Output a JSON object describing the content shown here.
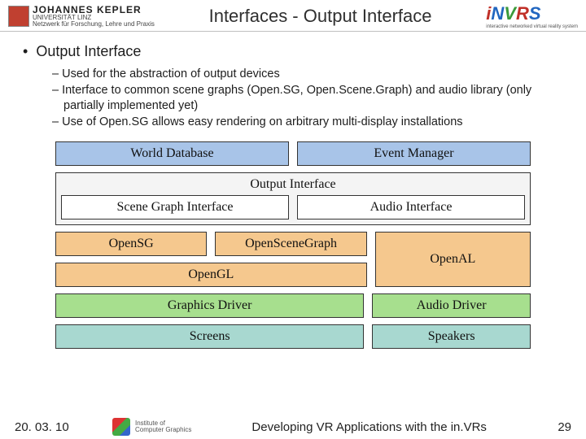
{
  "header": {
    "left_logo": {
      "uni_line1": "JOHANNES KEPLER",
      "uni_line2": "UNIVERSITÄT LINZ",
      "uni_line3": "Netzwerk für Forschung, Lehre und Praxis"
    },
    "slide_title": "Interfaces - Output Interface",
    "right_logo": {
      "text_html": "iNVRS",
      "subtag": "interactive networked virtual reality system"
    }
  },
  "content": {
    "heading": "Output Interface",
    "bullets": [
      "Used for the abstraction of output devices",
      "Interface to common scene graphs (Open.SG, Open.Scene.Graph) and audio library (only partially implemented yet)",
      "Use of Open.SG allows easy rendering on arbitrary multi-display installations"
    ]
  },
  "diagram": {
    "colors": {
      "blue": "#a8c4e8",
      "white": "#ffffff",
      "container": "#f4f4f4",
      "orange": "#f5c88e",
      "green": "#a7df8e",
      "teal": "#a8d8d0",
      "border": "#333333"
    },
    "rows": {
      "top": [
        "World Database",
        "Event Manager"
      ],
      "output_container": {
        "title": "Output Interface",
        "inner": [
          "Scene Graph Interface",
          "Audio Interface"
        ]
      },
      "sg_impl": [
        "OpenSG",
        "OpenSceneGraph"
      ],
      "gl": "OpenGL",
      "audio_impl": "OpenAL",
      "drivers": [
        "Graphics Driver",
        "Audio Driver"
      ],
      "devices": [
        "Screens",
        "Speakers"
      ]
    }
  },
  "footer": {
    "date": "20. 03. 10",
    "inst": "Institute of\nComputer Graphics",
    "title": "Developing VR Applications with the in.VRs",
    "page": "29"
  }
}
